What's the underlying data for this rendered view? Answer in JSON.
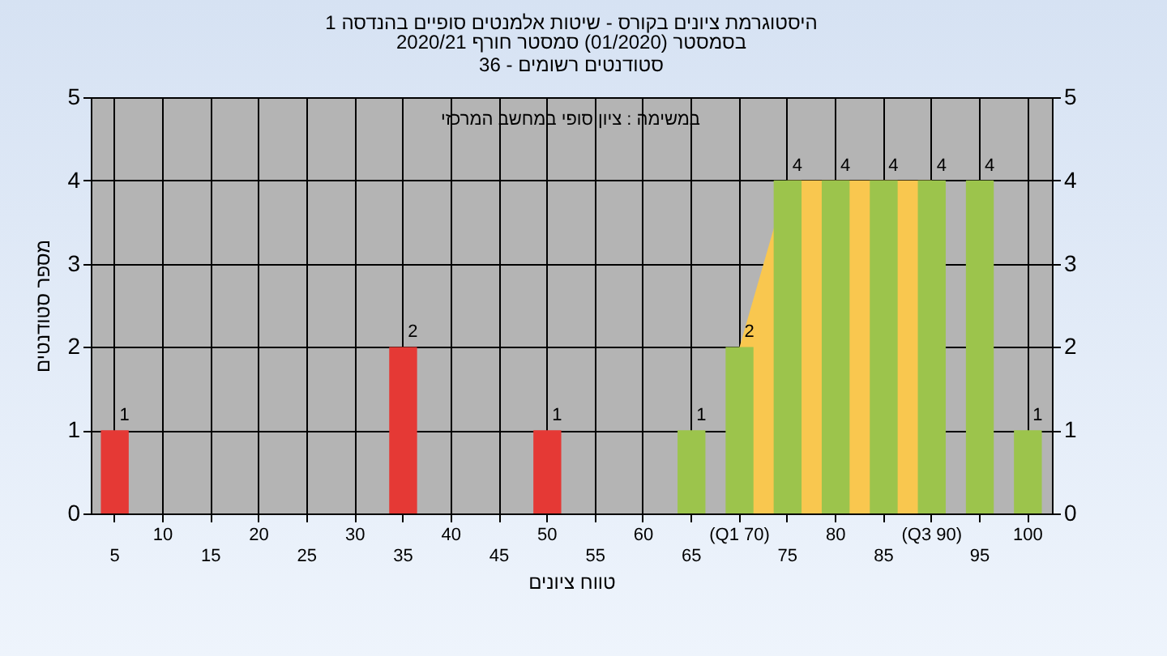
{
  "chart_data": {
    "type": "bar",
    "title": "היסטוגרמת ציונים בקורס - שיטות אלמנטים סופיים בהנדסה 1",
    "subtitle": "בסמסטר  (01/2020)  סמסטר חורף 2020/21\nסטודנטים רשומים - 36",
    "xlabel": "טווח ציונים",
    "ylabel": "מספר סטודנטים",
    "annotations": [
      "במשימה : ציון סופי במחשב המרכזי"
    ],
    "categories": [
      "5",
      "10",
      "15",
      "20",
      "25",
      "30",
      "35",
      "40",
      "45",
      "50",
      "55",
      "60",
      "65",
      "(Q1 70)",
      "75",
      "80",
      "85",
      "(Q3 90)",
      "95",
      "100"
    ],
    "series": [
      {
        "type": "area",
        "color": "#f9c74f",
        "values": [
          null,
          null,
          null,
          null,
          null,
          null,
          null,
          null,
          null,
          null,
          null,
          null,
          null,
          2,
          4,
          4,
          4,
          4,
          null,
          null
        ]
      },
      {
        "values": [
          1,
          0,
          0,
          0,
          0,
          0,
          2,
          0,
          0,
          1,
          0,
          0,
          1,
          2,
          4,
          4,
          4,
          4,
          4,
          1
        ],
        "colors": [
          "#e53935",
          "#e53935",
          "#e53935",
          "#e53935",
          "#e53935",
          "#e53935",
          "#e53935",
          "#e53935",
          "#e53935",
          "#e53935",
          "#9cc44c",
          "#9cc44c",
          "#9cc44c",
          "#9cc44c",
          "#9cc44c",
          "#9cc44c",
          "#9cc44c",
          "#9cc44c",
          "#9cc44c",
          "#9cc44c"
        ],
        "value_labels": [
          "1",
          null,
          null,
          null,
          null,
          null,
          "2",
          null,
          null,
          "1",
          null,
          null,
          "1",
          "2",
          "4",
          "4",
          "4",
          "4",
          "4",
          "1"
        ]
      }
    ],
    "ylim": [
      0,
      5
    ],
    "yticks": [
      0,
      1,
      2,
      3,
      4,
      5
    ],
    "y2lim": [
      0,
      5
    ],
    "y2ticks": [
      0,
      1,
      2,
      3,
      4,
      5
    ],
    "grid": true
  }
}
